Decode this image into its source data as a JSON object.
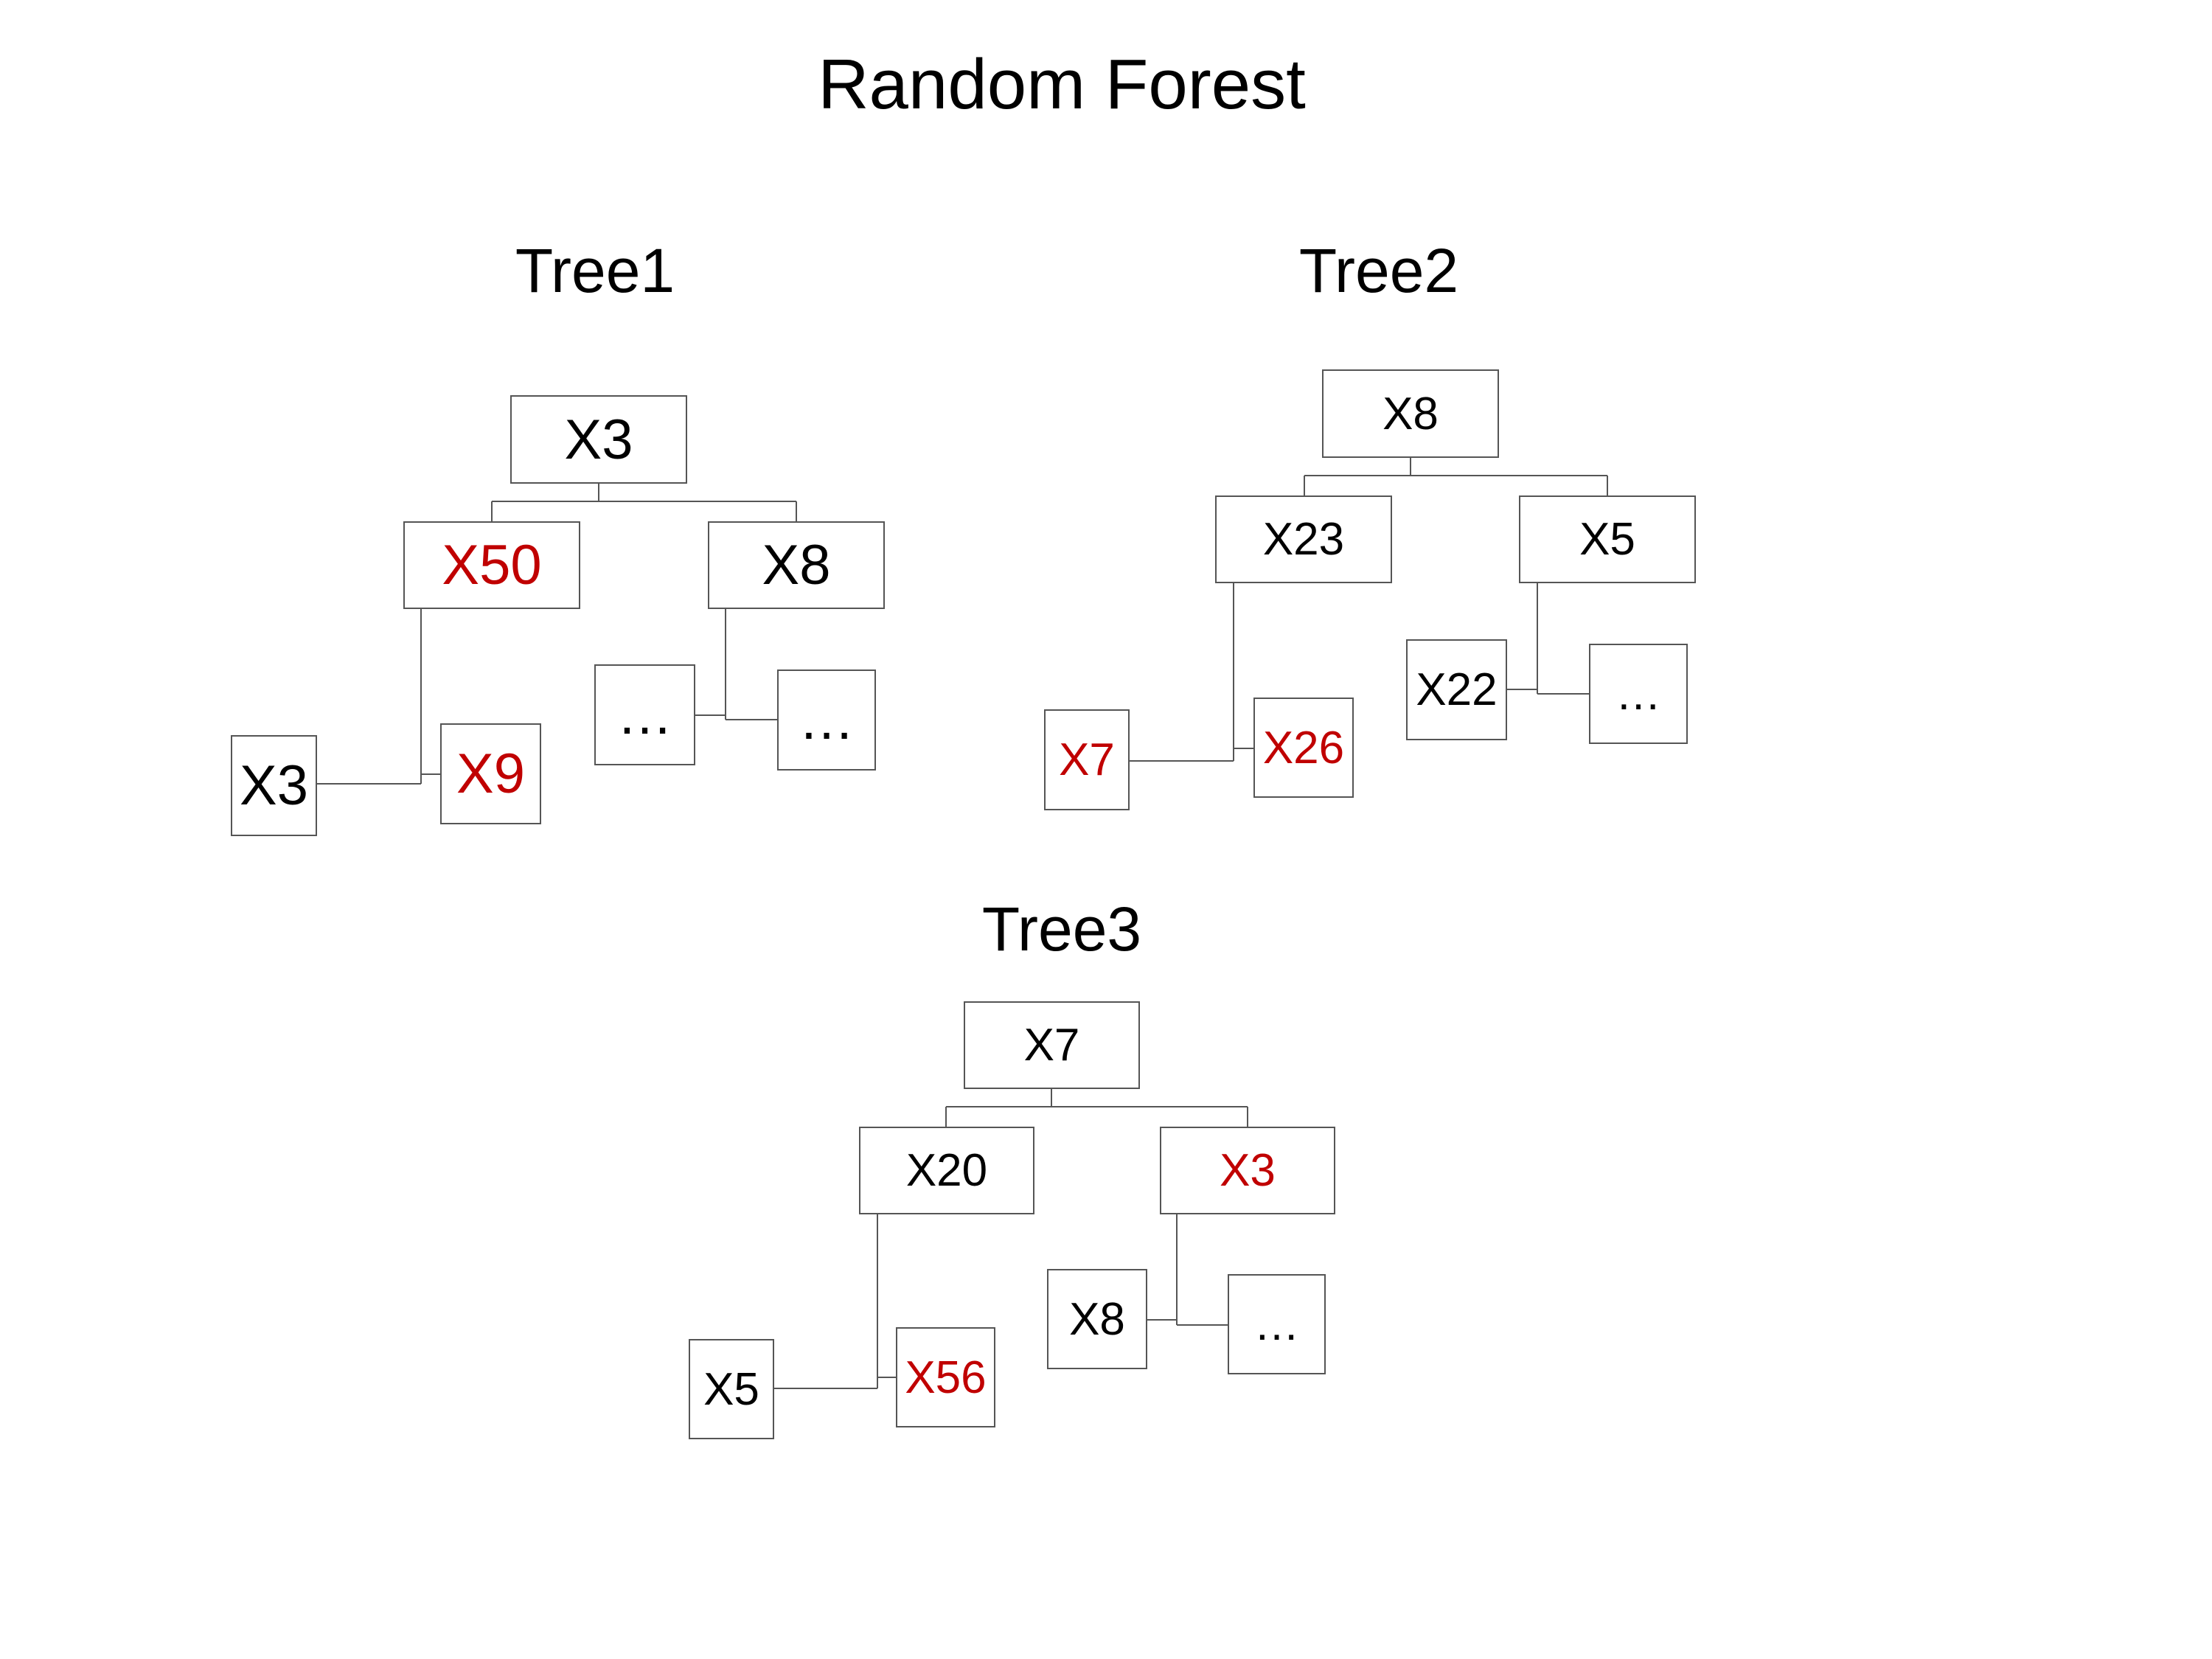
{
  "title": "Random Forest",
  "colors": {
    "default": "#000000",
    "highlight": "#c00000",
    "border": "#555555"
  },
  "trees": [
    {
      "title": "Tree1",
      "nodes": {
        "root": {
          "label": "X3"
        },
        "left": {
          "label": "X50",
          "highlight": true
        },
        "right": {
          "label": "X8"
        },
        "left_child_a": {
          "label": "X3"
        },
        "left_child_b": {
          "label": "X9",
          "highlight": true
        },
        "right_child_a": {
          "label": "…"
        },
        "right_child_b": {
          "label": "…"
        }
      }
    },
    {
      "title": "Tree2",
      "nodes": {
        "root": {
          "label": "X8"
        },
        "left": {
          "label": "X23"
        },
        "right": {
          "label": "X5"
        },
        "left_child_a": {
          "label": "X7",
          "highlight": true
        },
        "left_child_b": {
          "label": "X26",
          "highlight": true
        },
        "right_child_a": {
          "label": "X22"
        },
        "right_child_b": {
          "label": "…"
        }
      }
    },
    {
      "title": "Tree3",
      "nodes": {
        "root": {
          "label": "X7"
        },
        "left": {
          "label": "X20"
        },
        "right": {
          "label": "X3",
          "highlight": true
        },
        "left_child_a": {
          "label": "X5"
        },
        "left_child_b": {
          "label": "X56",
          "highlight": true
        },
        "right_child_a": {
          "label": "X8"
        },
        "right_child_b": {
          "label": "…"
        }
      }
    }
  ]
}
